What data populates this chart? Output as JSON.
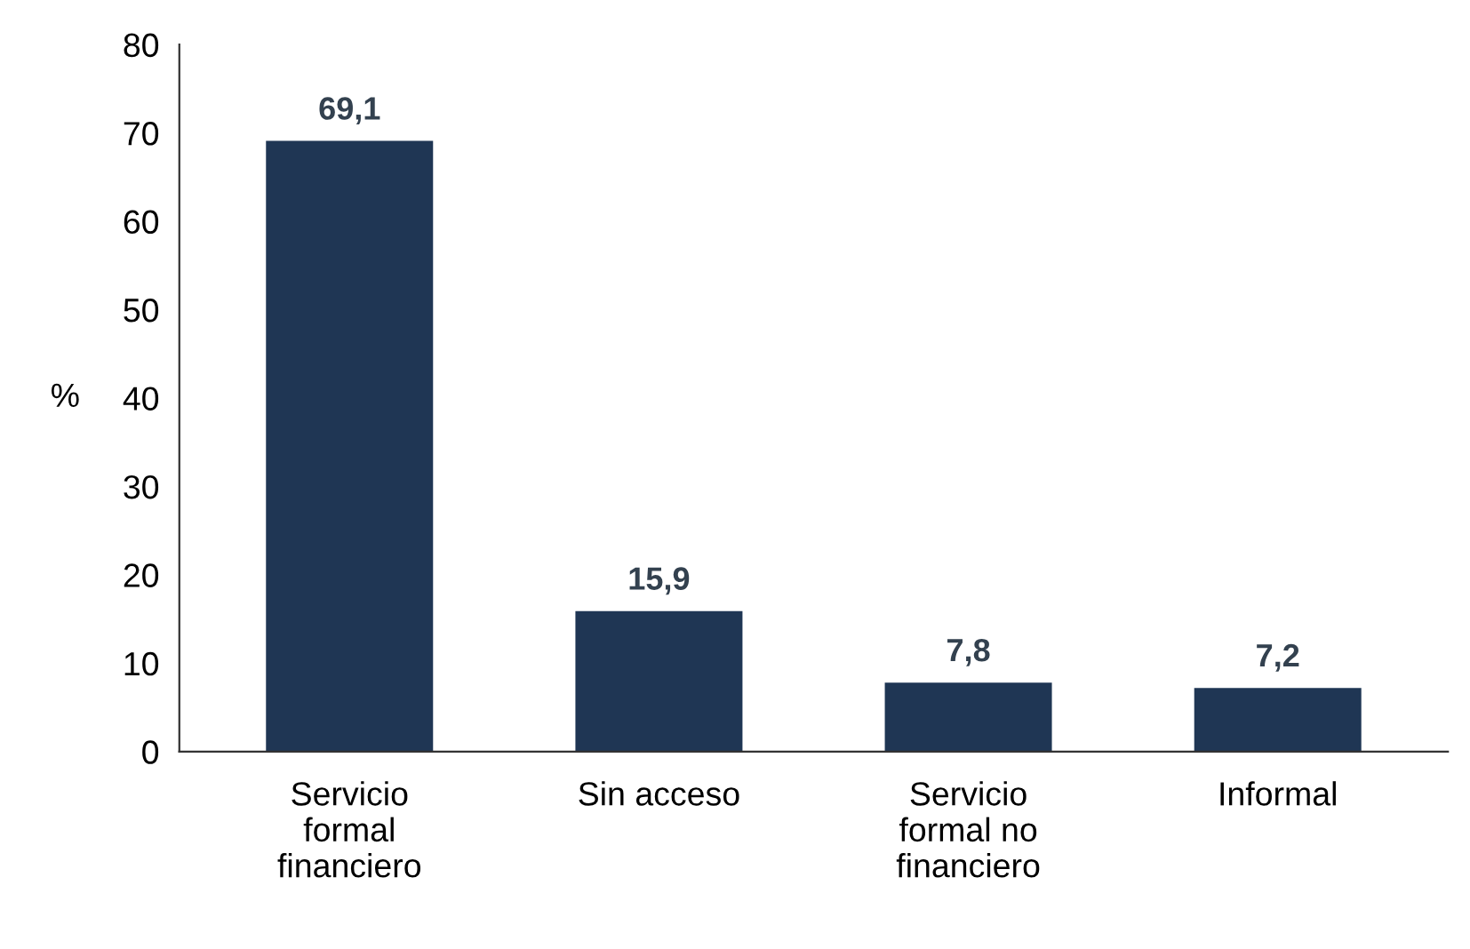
{
  "chart_data": {
    "type": "bar",
    "categories": [
      "Servicio\nformal\nfinanciero",
      "Sin acceso",
      "Servicio\nformal no\nfinanciero",
      "Informal"
    ],
    "values": [
      69.1,
      15.9,
      7.8,
      7.2
    ],
    "value_labels": [
      "69,1",
      "15,9",
      "7,8",
      "7,2"
    ],
    "color": "#1f3654",
    "ylabel": "%",
    "ylim": [
      0,
      80
    ],
    "yticks": [
      0,
      10,
      20,
      30,
      40,
      50,
      60,
      70,
      80
    ],
    "grid": false
  }
}
